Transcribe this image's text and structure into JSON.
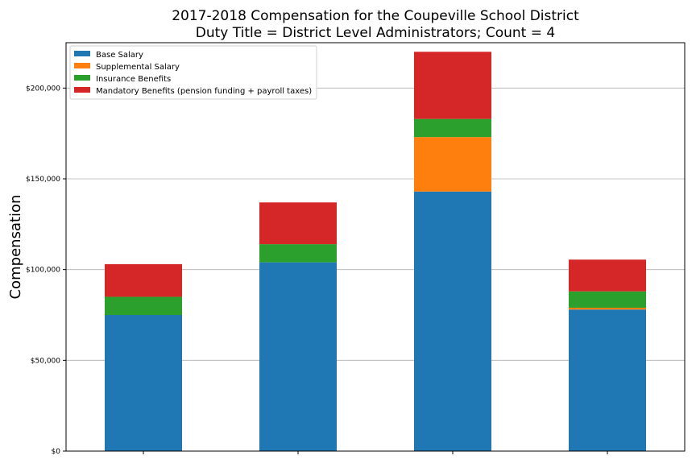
{
  "chart_data": {
    "type": "bar",
    "stacked": true,
    "title": [
      "2017-2018 Compensation for the Coupeville School District",
      "Duty Title = District Level Administrators; Count = 4"
    ],
    "xlabel": "",
    "ylabel": "Compensation",
    "categories": [
      "",
      "",
      "",
      ""
    ],
    "ylim": [
      0,
      225000
    ],
    "yticks": [
      0,
      50000,
      100000,
      150000,
      200000
    ],
    "ytick_labels": [
      "$0",
      "$50,000",
      "$100,000",
      "$150,000",
      "$200,000"
    ],
    "grid": "horizontal",
    "legend_position": "top-left",
    "series": [
      {
        "name": "Base Salary",
        "color": "#1f77b4",
        "values": [
          75000,
          104000,
          143000,
          78000
        ]
      },
      {
        "name": "Supplemental Salary",
        "color": "#ff7f0e",
        "values": [
          0,
          0,
          30000,
          1000
        ]
      },
      {
        "name": "Insurance Benefits",
        "color": "#2ca02c",
        "values": [
          10000,
          10000,
          10000,
          9000
        ]
      },
      {
        "name": "Mandatory Benefits (pension funding + payroll taxes)",
        "color": "#d62728",
        "values": [
          18000,
          23000,
          37000,
          17500
        ]
      }
    ]
  }
}
